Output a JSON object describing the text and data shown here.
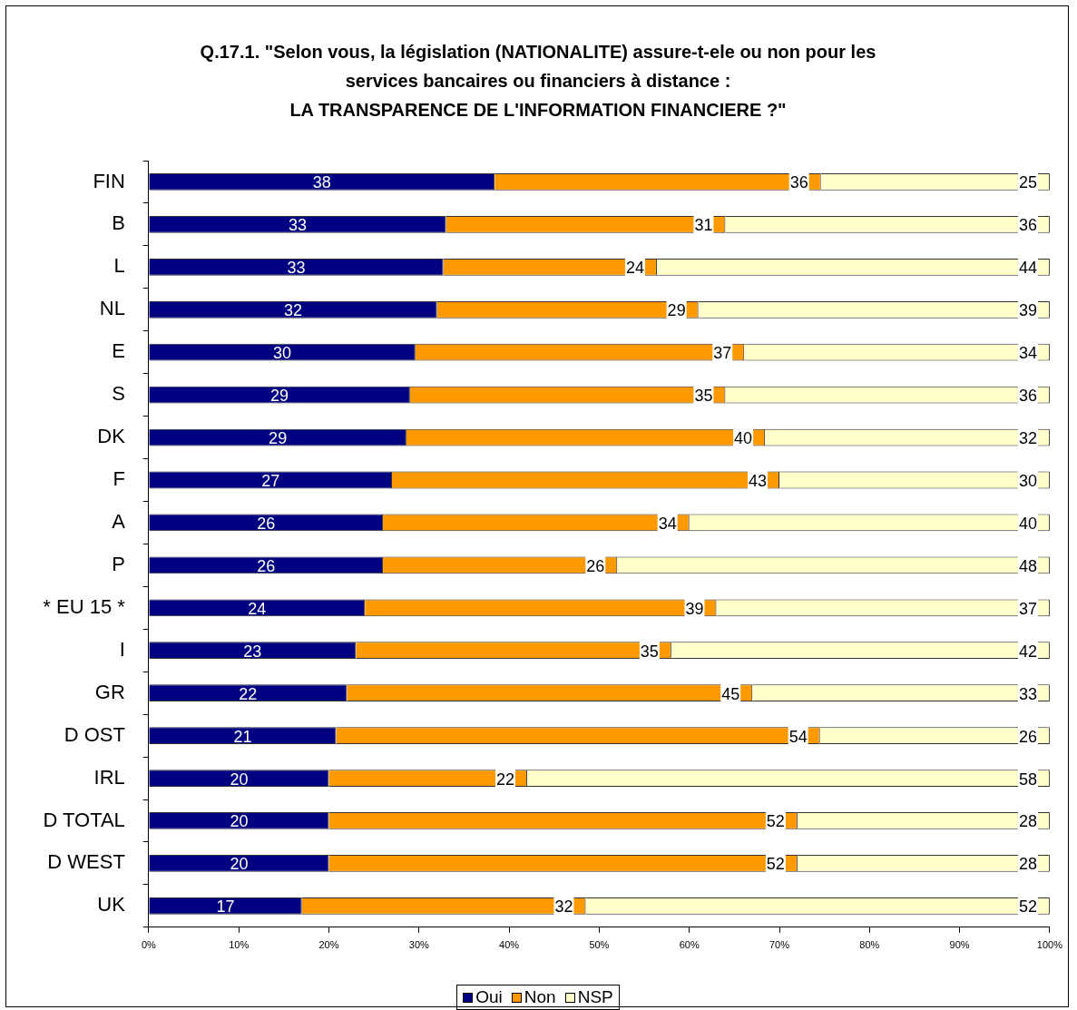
{
  "chart_data": {
    "type": "bar",
    "orientation": "horizontal",
    "stacked": true,
    "title": "Q.17.1.  \"Selon vous, la législation (NATIONALITE) assure-t-ele ou non pour les\nservices bancaires ou financiers à distance :\nLA TRANSPARENCE DE L'INFORMATION FINANCIERE ?\"",
    "categories": [
      "FIN",
      "B",
      "L",
      "NL",
      "E",
      "S",
      "DK",
      "F",
      "A",
      "P",
      "* EU 15 *",
      "I",
      "GR",
      "D OST",
      "IRL",
      "D TOTAL",
      "D WEST",
      "UK"
    ],
    "series": [
      {
        "name": "Oui",
        "color": "#000080",
        "values": [
          38.4,
          33,
          32.7,
          32,
          29.6,
          29,
          28.6,
          27,
          26,
          26,
          24,
          23,
          22,
          20.8,
          20,
          20,
          20,
          17
        ],
        "value_labels": [
          "38",
          "33",
          "33",
          "32",
          "30",
          "29",
          "29",
          "27",
          "26",
          "26",
          "24",
          "23",
          "22",
          "21",
          "20",
          "20",
          "20",
          "17"
        ]
      },
      {
        "name": "Non",
        "color": "#ff9900",
        "values": [
          36.2,
          31,
          23.7,
          29,
          36.5,
          35,
          39.8,
          43,
          34,
          26,
          39,
          35,
          45,
          53.7,
          22,
          52,
          52,
          31.5
        ],
        "value_labels": [
          "36",
          "31",
          "24",
          "29",
          "37",
          "35",
          "40",
          "43",
          "34",
          "26",
          "39",
          "35",
          "45",
          "54",
          "22",
          "52",
          "52",
          "32"
        ]
      },
      {
        "name": "NSP",
        "color": "#ffffcc",
        "values": [
          25.4,
          36,
          43.6,
          39,
          33.9,
          36,
          31.6,
          30,
          40,
          48,
          37,
          42,
          33,
          25.5,
          58,
          28,
          28,
          51.5
        ],
        "value_labels": [
          "25",
          "36",
          "44",
          "39",
          "34",
          "36",
          "32",
          "30",
          "40",
          "48",
          "37",
          "42",
          "33",
          "26",
          "58",
          "28",
          "28",
          "52"
        ]
      }
    ],
    "xlim": [
      0,
      100
    ],
    "xticks": [
      {
        "value": 0,
        "label": "0%"
      },
      {
        "value": 10,
        "label": "10%"
      },
      {
        "value": 20,
        "label": "20%"
      },
      {
        "value": 30,
        "label": "30%"
      },
      {
        "value": 40,
        "label": "40%"
      },
      {
        "value": 50,
        "label": "50%"
      },
      {
        "value": 60,
        "label": "60%"
      },
      {
        "value": 70,
        "label": "70%"
      },
      {
        "value": 80,
        "label": "80%"
      },
      {
        "value": 90,
        "label": "90%"
      },
      {
        "value": 100,
        "label": "100%"
      }
    ],
    "grid": false,
    "legend": "bottom"
  }
}
